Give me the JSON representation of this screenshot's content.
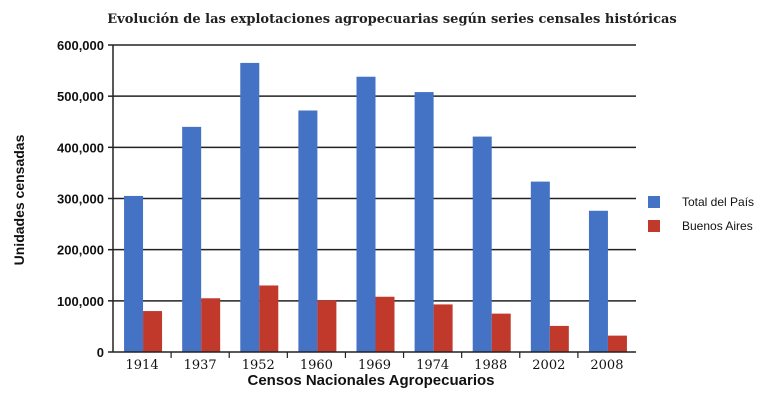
{
  "chart_data": {
    "type": "bar",
    "title": "Evolución de las explotaciones agropecuarias según series censales históricas",
    "xlabel": "Censos Nacionales Agropecuarios",
    "ylabel": "Unidades censadas",
    "categories": [
      "1914",
      "1937",
      "1952",
      "1960",
      "1969",
      "1974",
      "1988",
      "2002",
      "2008"
    ],
    "series": [
      {
        "name": "Total del País",
        "color": "#4472c4",
        "values": [
          305000,
          440000,
          565000,
          472000,
          538000,
          508000,
          421000,
          333000,
          276000
        ]
      },
      {
        "name": "Buenos Aires",
        "color": "#c0392b",
        "values": [
          80000,
          105000,
          130000,
          101000,
          108000,
          93000,
          75000,
          51000,
          32000
        ]
      }
    ],
    "ylim": [
      0,
      600000
    ],
    "yticks": [
      0,
      100000,
      200000,
      300000,
      400000,
      500000,
      600000
    ],
    "ytick_labels": [
      "0",
      "100,000",
      "200,000",
      "300,000",
      "400,000",
      "500,000",
      "600,000"
    ],
    "grid": "horizontal",
    "legend": "right"
  }
}
